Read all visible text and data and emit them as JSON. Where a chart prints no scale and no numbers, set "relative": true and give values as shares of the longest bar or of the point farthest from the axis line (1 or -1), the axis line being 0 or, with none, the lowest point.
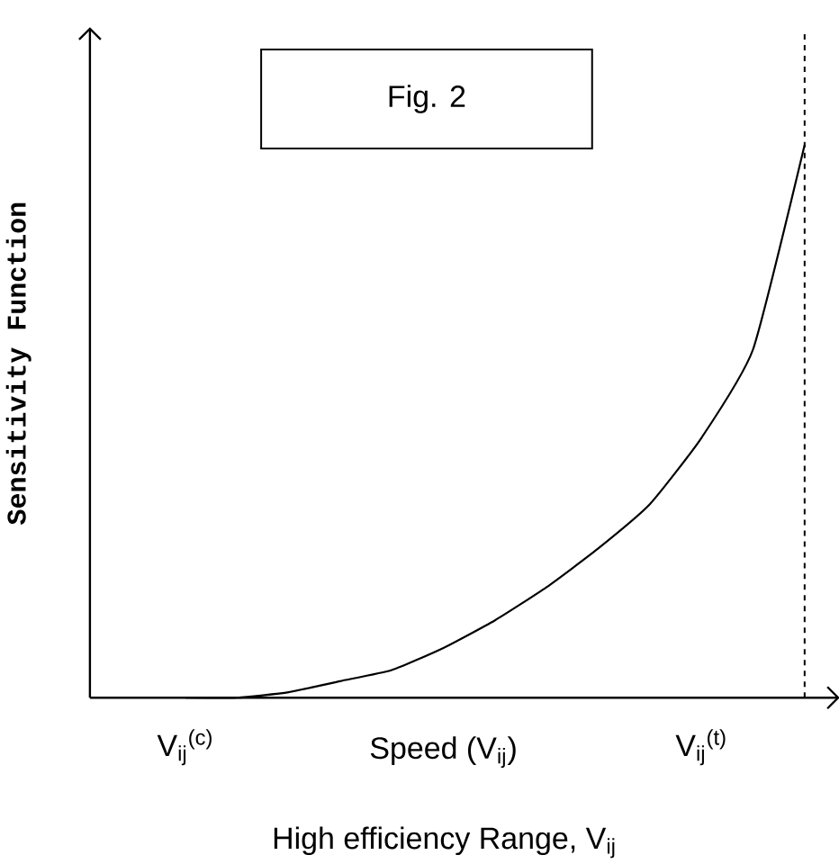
{
  "chart_data": {
    "type": "line",
    "relative": true,
    "title": "Fig. 2",
    "ylabel": "Sensitivity Function",
    "xlabel": "Speed (V$_{ij}$)",
    "annotations": [
      "High efficiency Range, V$_{ij}$"
    ],
    "categories": [
      "V$_{ij}$$^{(c)}$",
      null,
      null,
      null,
      null,
      null,
      null,
      null,
      null,
      null,
      "V$_{ij}$$^{(t)}$",
      null,
      null
    ],
    "values": [
      0,
      0,
      0.01,
      0.03,
      0.05,
      0.09,
      0.14,
      0.2,
      0.27,
      0.35,
      0.47,
      0.63,
      1.0
    ],
    "color": "#000000",
    "marker": "none",
    "line_style": "solid"
  }
}
